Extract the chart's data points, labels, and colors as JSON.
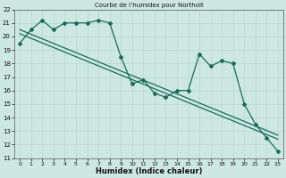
{
  "title": "Courbe de l’humidex pour Northolt",
  "xlabel": "Humidex (Indice chaleur)",
  "bg_color": "#cce8e0",
  "grid_color": "#aad4cc",
  "line_color": "#1a6b5a",
  "x_data": [
    0,
    1,
    2,
    3,
    4,
    5,
    6,
    7,
    8,
    9,
    10,
    11,
    12,
    13,
    14,
    15,
    16,
    17,
    18,
    19,
    20,
    21,
    22,
    23
  ],
  "y_data_main": [
    19.5,
    20.5,
    21.2,
    20.5,
    21.0,
    21.0,
    21.0,
    21.2,
    21.0,
    18.5,
    16.5,
    16.8,
    15.8,
    15.5,
    16.0,
    16.0,
    18.7,
    17.8,
    18.2,
    18.0,
    15.0,
    13.5,
    12.5,
    11.5
  ],
  "y_trend1_start": 20.5,
  "y_trend1_end": 12.7,
  "y_trend2_start": 20.2,
  "y_trend2_end": 12.4,
  "ylim": [
    11,
    22
  ],
  "xlim": [
    -0.5,
    23.5
  ],
  "yticks": [
    11,
    12,
    13,
    14,
    15,
    16,
    17,
    18,
    19,
    20,
    21,
    22
  ],
  "xticks": [
    0,
    1,
    2,
    3,
    4,
    5,
    6,
    7,
    8,
    9,
    10,
    11,
    12,
    13,
    14,
    15,
    16,
    17,
    18,
    19,
    20,
    21,
    22,
    23
  ]
}
